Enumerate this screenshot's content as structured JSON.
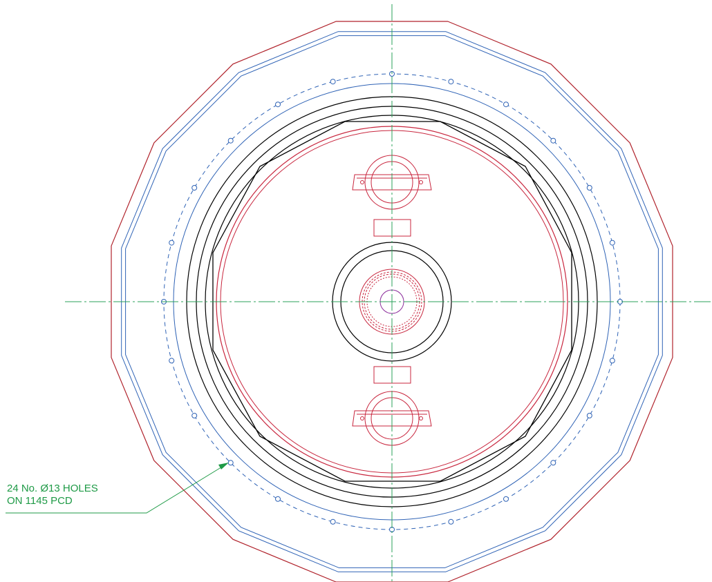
{
  "drawing": {
    "annotation": {
      "line1": "24 No.  Ø13 HOLES",
      "line2": "ON 1145 PCD"
    },
    "hole_count": 24,
    "colors": {
      "outline_red": "#b0222b",
      "flange_blue": "#2e62b5",
      "body_black": "#000000",
      "component_red": "#c8253d",
      "centerline_green": "#2aa058",
      "annotation_green": "#1e9a46",
      "bore_purple": "#8a2a9a"
    }
  }
}
